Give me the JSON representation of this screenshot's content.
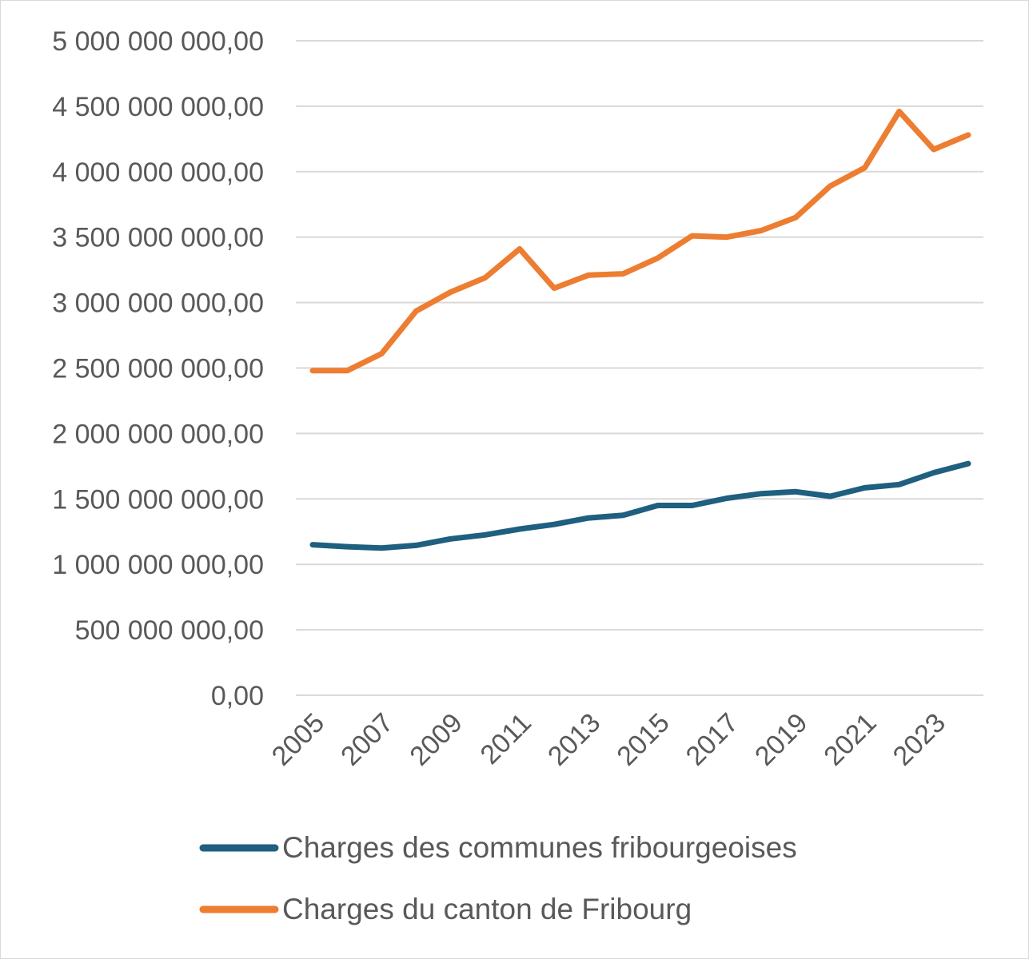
{
  "chart_data": {
    "type": "line",
    "x": [
      2005,
      2006,
      2007,
      2008,
      2009,
      2010,
      2011,
      2012,
      2013,
      2014,
      2015,
      2016,
      2017,
      2018,
      2019,
      2020,
      2021,
      2022,
      2023,
      2024
    ],
    "x_tick_labels": [
      "2005",
      "2007",
      "2009",
      "2011",
      "2013",
      "2015",
      "2017",
      "2019",
      "2021",
      "2023"
    ],
    "y_tick_labels": [
      "0,00",
      "500 000 000,00",
      "1 000 000 000,00",
      "1 500 000 000,00",
      "2 000 000 000,00",
      "2 500 000 000,00",
      "3 000 000 000,00",
      "3 500 000 000,00",
      "4 000 000 000,00",
      "4 500 000 000,00",
      "5 000 000 000,00"
    ],
    "ylim": [
      0,
      5000000000
    ],
    "grid": true,
    "legend_position": "bottom",
    "series": [
      {
        "name": "Charges des communes fribourgeoises",
        "color": "#1f5f7f",
        "values": [
          1150000000,
          1135000000,
          1125000000,
          1145000000,
          1195000000,
          1225000000,
          1270000000,
          1305000000,
          1355000000,
          1375000000,
          1450000000,
          1450000000,
          1505000000,
          1540000000,
          1555000000,
          1520000000,
          1585000000,
          1610000000,
          1700000000,
          1770000000
        ]
      },
      {
        "name": "Charges du canton de Fribourg",
        "color": "#ed7d31",
        "values": [
          2480000000,
          2480000000,
          2610000000,
          2935000000,
          3080000000,
          3190000000,
          3410000000,
          3110000000,
          3210000000,
          3220000000,
          3340000000,
          3510000000,
          3500000000,
          3550000000,
          3650000000,
          3890000000,
          4030000000,
          4460000000,
          4170000000,
          4280000000
        ]
      }
    ]
  }
}
